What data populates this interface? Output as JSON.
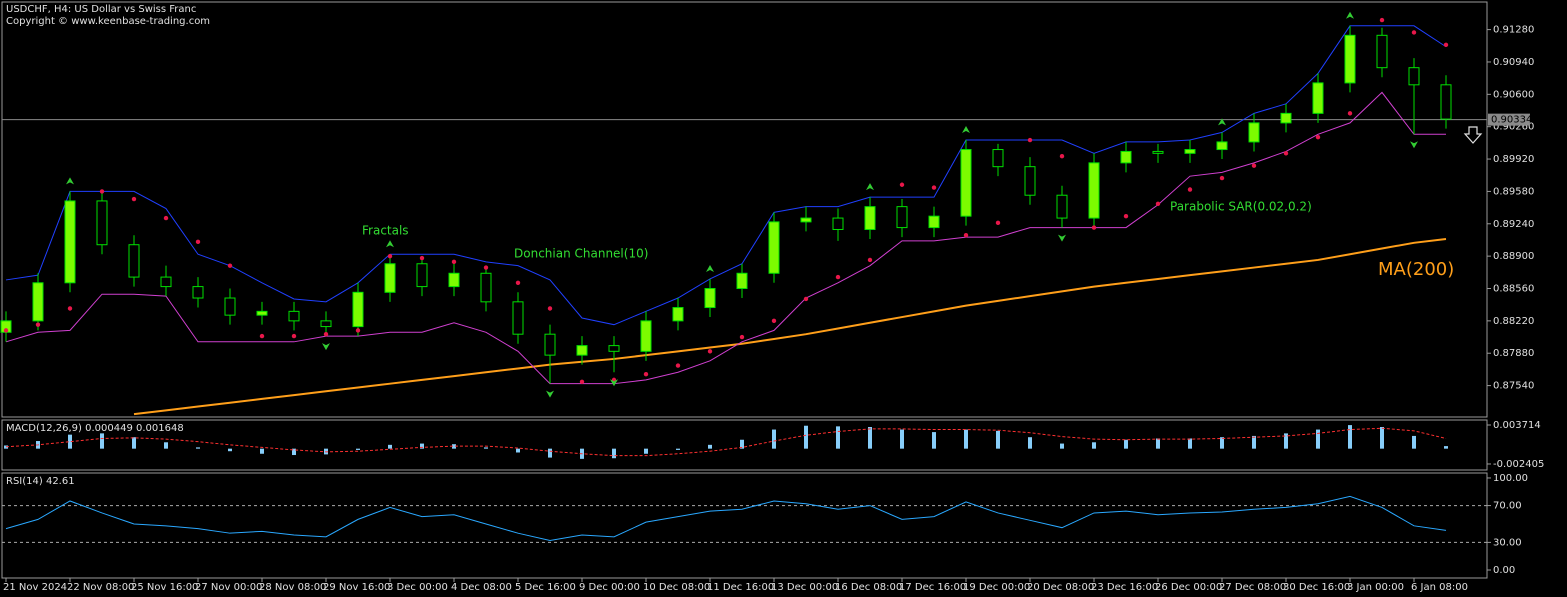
{
  "chart_data": [
    {
      "type": "candlestick",
      "title": "USDCHF, H4:  US Dollar vs Swiss Franc",
      "subtitle": "Copyright © www.keenbase-trading.com",
      "categories": [
        "21 Nov 2024",
        null,
        "22 Nov 08:00",
        null,
        "25 Nov 16:00",
        null,
        "27 Nov 00:00",
        null,
        "28 Nov 08:00",
        null,
        "29 Nov 16:00",
        null,
        "3 Dec 00:00",
        null,
        "4 Dec 08:00",
        null,
        "5 Dec 16:00",
        null,
        "9 Dec 00:00",
        null,
        "10 Dec 08:00",
        null,
        "11 Dec 16:00",
        null,
        "13 Dec 00:00",
        null,
        "16 Dec 08:00",
        null,
        "17 Dec 16:00",
        null,
        "19 Dec 00:00",
        null,
        "20 Dec 08:00",
        null,
        "23 Dec 16:00",
        null,
        "26 Dec 00:00",
        null,
        "27 Dec 08:00",
        null,
        "30 Dec 16:00",
        null,
        "3 Jan 00:00",
        null,
        "6 Jan 08:00",
        null
      ],
      "open": [
        0.881,
        0.8822,
        0.8862,
        0.8948,
        0.8902,
        0.8868,
        0.8858,
        0.8846,
        0.8828,
        0.8832,
        0.8822,
        0.8816,
        0.8852,
        0.8882,
        0.8858,
        0.8872,
        0.8842,
        0.8808,
        0.8786,
        0.8796,
        0.879,
        0.8822,
        0.8836,
        0.8856,
        0.8872,
        0.8926,
        0.893,
        0.8918,
        0.8942,
        0.892,
        0.8932,
        0.9002,
        0.8984,
        0.8954,
        0.893,
        0.8988,
        0.9,
        0.8998,
        0.9002,
        0.901,
        0.903,
        0.904,
        0.9072,
        0.9122,
        0.9088,
        0.907
      ],
      "high": [
        0.8832,
        0.8872,
        0.8958,
        0.8956,
        0.8912,
        0.888,
        0.8868,
        0.8856,
        0.8842,
        0.8842,
        0.8832,
        0.8862,
        0.8892,
        0.889,
        0.8884,
        0.888,
        0.8852,
        0.8818,
        0.8806,
        0.8806,
        0.8832,
        0.8846,
        0.8866,
        0.8882,
        0.8936,
        0.8942,
        0.894,
        0.8952,
        0.895,
        0.8942,
        0.9012,
        0.9008,
        0.8994,
        0.8964,
        0.8998,
        0.901,
        0.9008,
        0.9012,
        0.902,
        0.904,
        0.905,
        0.9082,
        0.9132,
        0.913,
        0.9098,
        0.908
      ],
      "low": [
        0.88,
        0.8812,
        0.8852,
        0.8892,
        0.8858,
        0.8848,
        0.8836,
        0.8818,
        0.8818,
        0.8812,
        0.8806,
        0.8806,
        0.8842,
        0.8848,
        0.8848,
        0.8832,
        0.8798,
        0.8756,
        0.8776,
        0.8768,
        0.878,
        0.8812,
        0.8826,
        0.8846,
        0.8862,
        0.8916,
        0.8906,
        0.8908,
        0.891,
        0.891,
        0.8922,
        0.8974,
        0.8944,
        0.892,
        0.892,
        0.8978,
        0.8988,
        0.8988,
        0.8992,
        0.9,
        0.902,
        0.903,
        0.9062,
        0.9078,
        0.9018,
        0.9024
      ],
      "close": [
        0.8822,
        0.8862,
        0.8948,
        0.8902,
        0.8868,
        0.8858,
        0.8846,
        0.8828,
        0.8832,
        0.8822,
        0.8816,
        0.8852,
        0.8882,
        0.8858,
        0.8872,
        0.8842,
        0.8808,
        0.8786,
        0.8796,
        0.879,
        0.8822,
        0.8836,
        0.8856,
        0.8872,
        0.8926,
        0.893,
        0.8918,
        0.8942,
        0.892,
        0.8932,
        0.9002,
        0.8984,
        0.8954,
        0.893,
        0.8988,
        0.9,
        0.8998,
        0.9002,
        0.901,
        0.903,
        0.904,
        0.9072,
        0.9122,
        0.9088,
        0.907,
        0.9034
      ],
      "up_color": "#7cfc00",
      "down_color": "#000000",
      "wick_color": "#00e000",
      "current_price": 0.90334,
      "ylim": [
        0.8721,
        0.9157
      ],
      "yticks": [
        {
          "value": 0.9128,
          "label": "0.91280"
        },
        {
          "value": 0.9094,
          "label": "0.90940"
        },
        {
          "value": 0.906,
          "label": "0.90600"
        },
        {
          "value": 0.9026,
          "label": "0.90260"
        },
        {
          "value": 0.8992,
          "label": "0.89920"
        },
        {
          "value": 0.8958,
          "label": "0.89580"
        },
        {
          "value": 0.8924,
          "label": "0.89240"
        },
        {
          "value": 0.889,
          "label": "0.88900"
        },
        {
          "value": 0.8856,
          "label": "0.88560"
        },
        {
          "value": 0.8822,
          "label": "0.88220"
        },
        {
          "value": 0.8788,
          "label": "0.87880"
        },
        {
          "value": 0.8754,
          "label": "0.87540"
        }
      ],
      "overlays": [
        {
          "name": "MA(200)",
          "style": "line",
          "color": "#ff9f1a",
          "values": [
            null,
            null,
            null,
            null,
            0.8724,
            0.8728,
            0.8732,
            0.8736,
            0.874,
            0.8744,
            0.8748,
            0.8752,
            0.8756,
            0.876,
            0.8764,
            0.8768,
            0.8772,
            0.8776,
            0.8779,
            0.8782,
            0.8786,
            0.879,
            0.8794,
            0.8798,
            0.8803,
            0.8808,
            0.8814,
            0.882,
            0.8826,
            0.8832,
            0.8838,
            0.8843,
            0.8848,
            0.8853,
            0.8858,
            0.8862,
            0.8866,
            0.887,
            0.8874,
            0.8878,
            0.8882,
            0.8886,
            0.8892,
            0.8898,
            0.8904,
            0.8908
          ]
        },
        {
          "name": "Donchian Channel(10)",
          "style": "channel",
          "upper_color": "#2040ff",
          "lower_color": "#d040d0",
          "upper": [
            0.8865,
            0.887,
            0.8958,
            0.8958,
            0.8958,
            0.894,
            0.8892,
            0.888,
            0.8862,
            0.8845,
            0.8842,
            0.8862,
            0.8892,
            0.8892,
            0.8892,
            0.8884,
            0.888,
            0.8865,
            0.8825,
            0.8818,
            0.8832,
            0.8846,
            0.8866,
            0.8882,
            0.8936,
            0.8942,
            0.8942,
            0.8952,
            0.8952,
            0.8952,
            0.9012,
            0.9012,
            0.9012,
            0.9012,
            0.8998,
            0.901,
            0.901,
            0.9012,
            0.902,
            0.904,
            0.905,
            0.9082,
            0.9132,
            0.9132,
            0.9132,
            0.911
          ],
          "lower": [
            0.88,
            0.881,
            0.8812,
            0.885,
            0.885,
            0.8848,
            0.88,
            0.88,
            0.88,
            0.88,
            0.8806,
            0.8806,
            0.881,
            0.881,
            0.882,
            0.881,
            0.879,
            0.8756,
            0.8756,
            0.8756,
            0.876,
            0.8768,
            0.878,
            0.88,
            0.8812,
            0.8846,
            0.8862,
            0.888,
            0.8906,
            0.8906,
            0.891,
            0.891,
            0.892,
            0.892,
            0.892,
            0.892,
            0.8944,
            0.8974,
            0.8978,
            0.8988,
            0.9,
            0.9018,
            0.903,
            0.9062,
            0.9018,
            0.9018
          ]
        },
        {
          "name": "Parabolic SAR(0.02,0.2)",
          "style": "dots",
          "color": "#e8174a",
          "values": [
            0.8812,
            0.8818,
            0.8835,
            0.8958,
            0.895,
            0.893,
            0.8905,
            0.888,
            0.8806,
            0.8806,
            0.8808,
            0.8812,
            0.889,
            0.8888,
            0.8884,
            0.8878,
            0.8862,
            0.8835,
            0.8758,
            0.876,
            0.8766,
            0.8775,
            0.879,
            0.8805,
            0.8822,
            0.8845,
            0.8868,
            0.8886,
            0.8965,
            0.8962,
            0.8912,
            0.8925,
            0.9012,
            0.8995,
            0.892,
            0.8932,
            0.8945,
            0.896,
            0.8972,
            0.8985,
            0.8998,
            0.9015,
            0.904,
            0.9138,
            0.9125,
            0.9112
          ]
        },
        {
          "name": "Fractals",
          "style": "arrows",
          "color": "#33cc33",
          "up": [
            null,
            null,
            0.8958,
            null,
            null,
            null,
            null,
            null,
            null,
            null,
            null,
            null,
            0.8892,
            null,
            null,
            null,
            null,
            null,
            null,
            null,
            null,
            null,
            0.8866,
            null,
            null,
            null,
            null,
            0.8952,
            null,
            null,
            0.9012,
            null,
            null,
            null,
            null,
            null,
            null,
            null,
            0.902,
            null,
            null,
            null,
            0.9132,
            null,
            null,
            null
          ],
          "down": [
            null,
            null,
            null,
            null,
            null,
            null,
            null,
            null,
            null,
            null,
            0.8806,
            null,
            null,
            null,
            null,
            null,
            null,
            0.8756,
            null,
            0.8768,
            null,
            null,
            null,
            null,
            null,
            null,
            null,
            null,
            null,
            null,
            null,
            null,
            null,
            0.892,
            null,
            null,
            null,
            null,
            null,
            null,
            null,
            null,
            null,
            null,
            0.9018,
            null
          ]
        }
      ]
    },
    {
      "type": "macd",
      "title": "MACD(12,26,9) 0.000449 0.001648",
      "color": "#87cefa",
      "signal_color": "#ff3030",
      "values": [
        0.0005,
        0.0012,
        0.0022,
        0.0024,
        0.0018,
        0.001,
        0.0002,
        -0.0004,
        -0.0008,
        -0.001,
        -0.0009,
        -0.0002,
        0.0006,
        0.0008,
        0.0007,
        0.0002,
        -0.0006,
        -0.0014,
        -0.0016,
        -0.0015,
        -0.0008,
        -0.0002,
        0.0006,
        0.0014,
        0.003,
        0.0036,
        0.0035,
        0.0034,
        0.003,
        0.0026,
        0.003,
        0.0028,
        0.0018,
        0.0008,
        0.001,
        0.0014,
        0.0016,
        0.0016,
        0.0018,
        0.002,
        0.0024,
        0.003,
        0.0037,
        0.0034,
        0.002,
        0.0004
      ],
      "signal": [
        0.0003,
        0.0006,
        0.0011,
        0.0016,
        0.0017,
        0.0015,
        0.0011,
        0.0006,
        0.0002,
        -0.0002,
        -0.0005,
        -0.0004,
        -0.0001,
        0.0002,
        0.0004,
        0.0004,
        0.0001,
        -0.0004,
        -0.0008,
        -0.0011,
        -0.0011,
        -0.0008,
        -0.0004,
        0.0002,
        0.0012,
        0.0021,
        0.0027,
        0.0031,
        0.0031,
        0.003,
        0.003,
        0.0029,
        0.0025,
        0.0019,
        0.0015,
        0.0014,
        0.0015,
        0.0015,
        0.0016,
        0.0018,
        0.002,
        0.0024,
        0.003,
        0.0032,
        0.0028,
        0.0016
      ],
      "ylim": [
        -0.00335,
        0.0045
      ],
      "yticks": [
        0.003714,
        -0.002405
      ]
    },
    {
      "type": "line",
      "title": "RSI(14) 42.61",
      "color": "#2aa8ff",
      "values": [
        45,
        55,
        75,
        62,
        50,
        48,
        45,
        40,
        42,
        38,
        36,
        55,
        68,
        58,
        60,
        50,
        40,
        32,
        38,
        36,
        52,
        58,
        64,
        66,
        75,
        72,
        66,
        70,
        55,
        58,
        74,
        62,
        54,
        46,
        62,
        64,
        60,
        62,
        63,
        66,
        68,
        72,
        80,
        68,
        48,
        43
      ],
      "ylim": [
        -8.7,
        105.4
      ],
      "yticks": [
        {
          "value": 100,
          "label": "100.00"
        },
        {
          "value": 70,
          "label": "70.00"
        },
        {
          "value": 30,
          "label": "30.00"
        },
        {
          "value": 0,
          "label": "0.00"
        }
      ],
      "levels": [
        70,
        30
      ]
    }
  ]
}
